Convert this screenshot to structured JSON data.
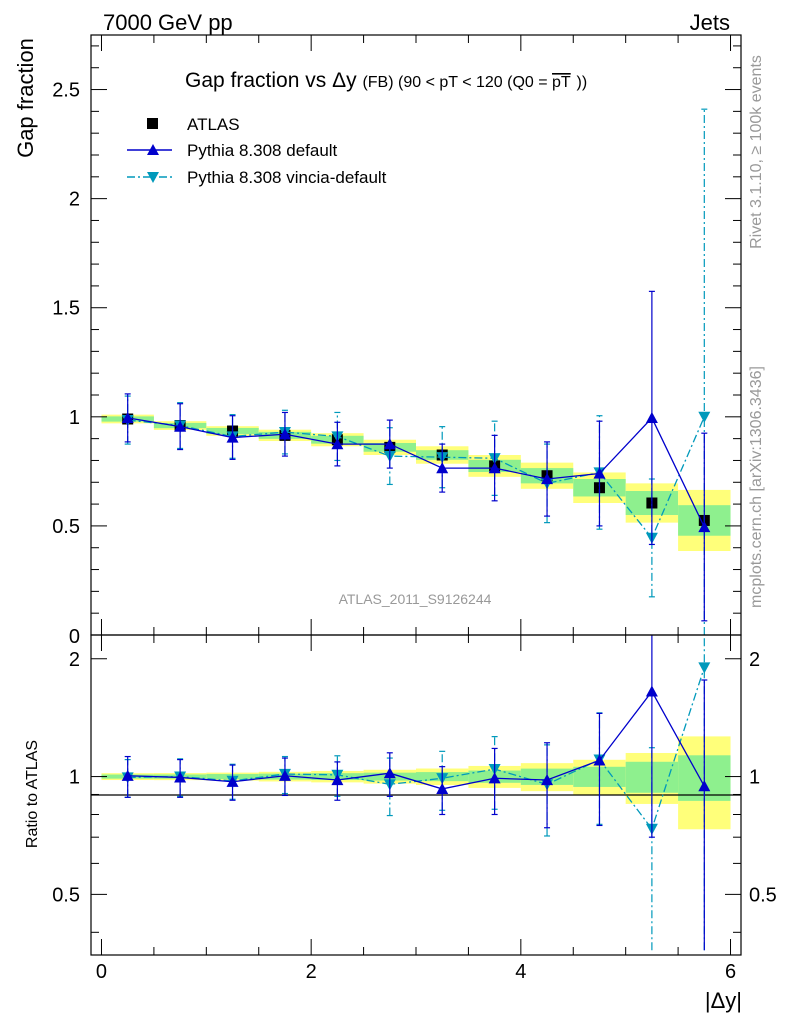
{
  "header": {
    "left": "7000 GeV pp",
    "right": "Jets"
  },
  "side": {
    "rivet": "Rivet 3.1.10, ≥ 100k events",
    "mcplots": "mcplots.cern.ch [arXiv:1306.3436]"
  },
  "chart_data": {
    "type": "scatter",
    "title_main": "Gap fraction vs",
    "title_sym": "Δy",
    "title_tail": " (FB)  (90 < pT < 120 (Q0 = ",
    "title_pt": "pT",
    "title_end": "))",
    "ylabel": "Gap fraction",
    "ratio_ylabel": "Ratio to ATLAS",
    "xlabel": "|Δy|",
    "watermark": "ATLAS_2011_S9126244",
    "xlim": [
      -0.1,
      6.1
    ],
    "ylim": [
      0,
      2.75
    ],
    "ratio_ylim": [
      0.35,
      2.3
    ],
    "x_ticks": [
      "0",
      "2",
      "4",
      "6"
    ],
    "y_ticks": [
      "0.5",
      "1",
      "1.5",
      "2",
      "2.5"
    ],
    "y_tick_zero": "0",
    "ratio_y_ticks": [
      "0.5",
      "1",
      "2"
    ],
    "x": [
      0.25,
      0.75,
      1.25,
      1.75,
      2.25,
      2.75,
      3.25,
      3.75,
      4.25,
      4.75,
      5.25,
      5.75
    ],
    "legend": [
      {
        "label": "ATLAS"
      },
      {
        "label": "Pythia 8.308 default"
      },
      {
        "label": "Pythia 8.308 vincia-default"
      }
    ],
    "series": [
      {
        "name": "ATLAS",
        "color": "#000000",
        "marker": "square",
        "values": [
          0.99,
          0.96,
          0.935,
          0.915,
          0.895,
          0.86,
          0.825,
          0.775,
          0.73,
          0.675,
          0.605,
          0.525
        ],
        "band_inner": [
          0.012,
          0.012,
          0.014,
          0.016,
          0.018,
          0.02,
          0.022,
          0.028,
          0.035,
          0.04,
          0.055,
          0.07
        ],
        "band_outer": [
          0.02,
          0.02,
          0.022,
          0.026,
          0.03,
          0.035,
          0.04,
          0.05,
          0.06,
          0.07,
          0.09,
          0.14
        ]
      },
      {
        "name": "Pythia 8.308 default",
        "color": "#0000cc",
        "marker": "triangle-up",
        "dash": "solid",
        "values": [
          0.995,
          0.955,
          0.905,
          0.92,
          0.875,
          0.875,
          0.765,
          0.765,
          0.715,
          0.74,
          0.995,
          0.495
        ],
        "errors": [
          0.11,
          0.105,
          0.1,
          0.1,
          0.1,
          0.11,
          0.11,
          0.15,
          0.17,
          0.24,
          0.58,
          0.43
        ],
        "ratio": [
          1.005,
          0.995,
          0.97,
          1.005,
          0.98,
          1.02,
          0.93,
          0.99,
          0.98,
          1.1,
          1.65,
          0.945
        ],
        "ratio_errors": [
          0.12,
          0.11,
          0.1,
          0.11,
          0.11,
          0.13,
          0.13,
          0.19,
          0.24,
          0.35,
          0.95,
          0.82
        ]
      },
      {
        "name": "Pythia 8.308 vincia-default",
        "color": "#0099bb",
        "marker": "triangle-down",
        "dash": "dashdot",
        "values": [
          0.985,
          0.96,
          0.91,
          0.93,
          0.91,
          0.82,
          0.815,
          0.81,
          0.695,
          0.745,
          0.445,
          1.0
        ],
        "errors": [
          0.11,
          0.105,
          0.1,
          0.1,
          0.11,
          0.13,
          0.14,
          0.17,
          0.18,
          0.26,
          0.27,
          1.41
        ],
        "ratio": [
          0.995,
          1.0,
          0.975,
          1.015,
          1.01,
          0.955,
          0.99,
          1.045,
          0.955,
          1.105,
          0.735,
          1.9
        ],
        "ratio_errors": [
          0.11,
          0.11,
          0.1,
          0.11,
          0.12,
          0.16,
          0.17,
          0.22,
          0.25,
          0.35,
          0.45,
          2.7
        ]
      }
    ]
  }
}
